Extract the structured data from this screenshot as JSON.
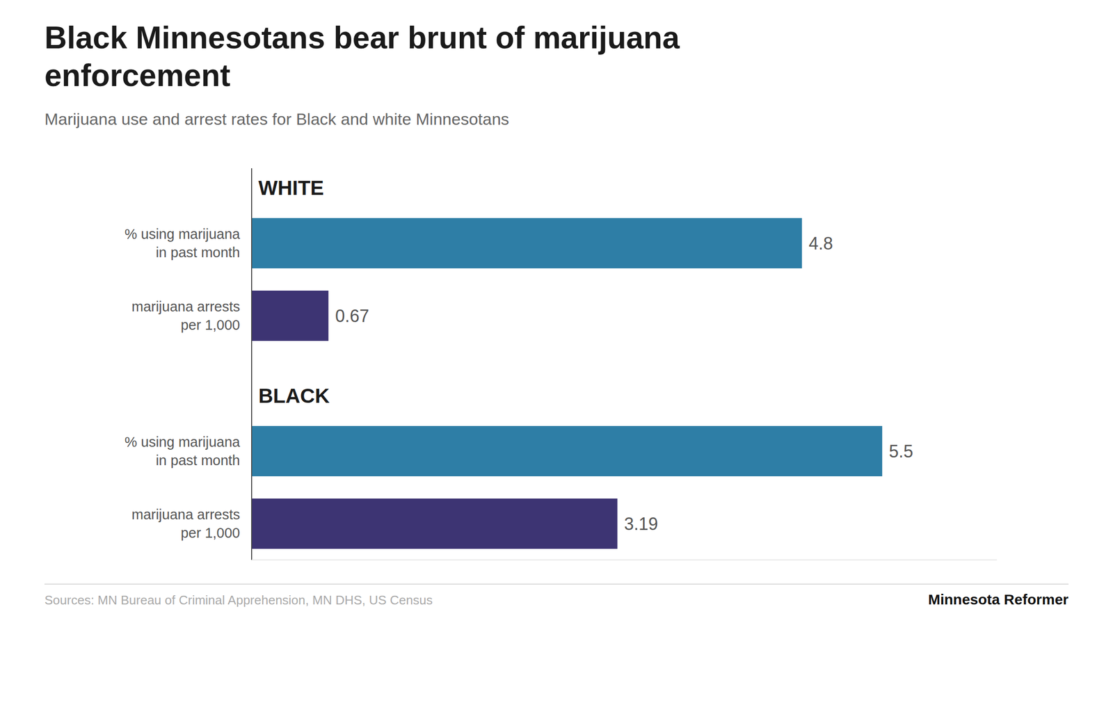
{
  "chart_data": {
    "type": "bar",
    "orientation": "horizontal",
    "title": "Black Minnesotans bear brunt of marijuana\nenforcement",
    "subtitle": "Marijuana use and arrest rates for Black and white Minnesotans",
    "annotations": [
      "WHITE",
      "BLACK"
    ],
    "source": "Sources: MN Bureau of Criminal Apprehension, MN DHS, US Census",
    "credit": "Minnesota Reformer",
    "categories": [
      "% using marijuana\nin past month",
      "marijuana arrests\nper 1,000",
      "% using marijuana\nin past month",
      "marijuana arrests\nper 1,000"
    ],
    "values": [
      4.8,
      0.67,
      5.5,
      3.19
    ],
    "colors": [
      "#2e7ea6",
      "#3d3473",
      "#2e7ea6",
      "#3d3473"
    ],
    "xlim": [
      0,
      6.5
    ],
    "data_labels": true,
    "tick_labels": false,
    "grid": false
  }
}
